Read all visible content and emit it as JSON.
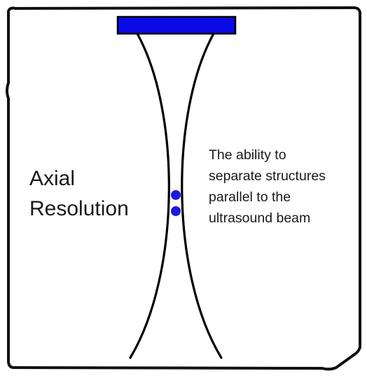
{
  "diagram": {
    "title_lines": [
      "Axial",
      "Resolution"
    ],
    "description_lines": [
      "The ability to",
      "separate structures",
      "parallel to the",
      "ultrasound beam"
    ],
    "colors": {
      "transducer": "#0a0ae6",
      "reflectors": "#1a1ae0",
      "beam_lines": "#000000",
      "frame": "#111111",
      "background": "#ffffff"
    },
    "reflector_count": 2
  }
}
